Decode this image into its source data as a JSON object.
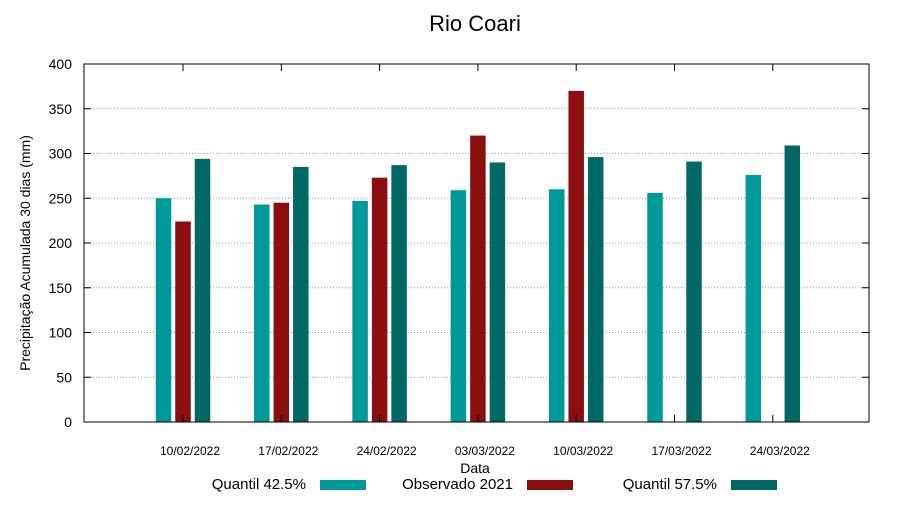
{
  "chart_data": {
    "type": "bar",
    "title": "Rio Coari",
    "xlabel": "Data",
    "ylabel": "Precipitação Acumulada 30 dias (mm)",
    "ylim": [
      0,
      400
    ],
    "yticks": [
      0,
      50,
      100,
      150,
      200,
      250,
      300,
      350,
      400
    ],
    "grid": true,
    "legend_position": "bottom",
    "categories": [
      "10/02/2022",
      "17/02/2022",
      "24/02/2022",
      "03/03/2022",
      "10/03/2022",
      "17/03/2022",
      "24/03/2022"
    ],
    "series": [
      {
        "name": "Quantil 42.5%",
        "color": "#009999",
        "values": [
          250,
          243,
          247,
          259,
          260,
          256,
          276
        ]
      },
      {
        "name": "Observado 2021",
        "color": "#8b0f0f",
        "values": [
          224,
          245,
          273,
          320,
          370,
          null,
          null
        ]
      },
      {
        "name": "Quantil 57.5%",
        "color": "#006966",
        "values": [
          294,
          285,
          287,
          290,
          296,
          291,
          309
        ]
      }
    ]
  }
}
